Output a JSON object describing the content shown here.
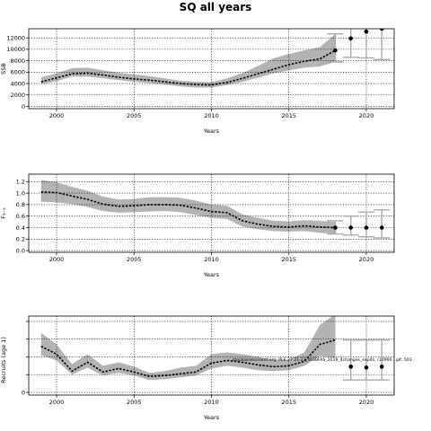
{
  "chart_data": {
    "type": "line",
    "title": "SQ all years",
    "watermark": "stockassessment.org, PLE.27.21-23_WGBFAS_2019_4changes_expits, r10990 , git: 503",
    "panels": [
      {
        "id": "ssb",
        "ylabel": "SSB",
        "xlabel": "Years",
        "xlim": [
          1998.2,
          2021.8
        ],
        "ylim": [
          -400,
          13600
        ],
        "xticks": [
          2000,
          2005,
          2010,
          2015,
          2020
        ],
        "yticks": [
          0,
          2000,
          4000,
          6000,
          8000,
          10000,
          12000
        ],
        "x": [
          1999,
          2000,
          2001,
          2002,
          2003,
          2004,
          2005,
          2006,
          2007,
          2008,
          2009,
          2010,
          2011,
          2012,
          2013,
          2014,
          2015,
          2016,
          2017,
          2018
        ],
        "estimate": [
          4300,
          5000,
          5700,
          5800,
          5500,
          5100,
          4800,
          4600,
          4300,
          4000,
          3800,
          3750,
          4200,
          4900,
          5700,
          6500,
          7300,
          7900,
          8300,
          9800
        ],
        "lower": [
          3900,
          4400,
          5200,
          5200,
          4900,
          4600,
          4300,
          4100,
          3800,
          3500,
          3300,
          3300,
          3700,
          4300,
          5000,
          5800,
          6300,
          6800,
          7000,
          7800
        ],
        "upper": [
          5100,
          5800,
          6700,
          6800,
          6300,
          5900,
          5600,
          5300,
          4900,
          4500,
          4300,
          4200,
          4900,
          5800,
          7100,
          8400,
          9200,
          9800,
          10400,
          12700
        ],
        "forecast_x": [
          2018,
          2019,
          2020,
          2021
        ],
        "forecast_median": [
          9800,
          11900,
          13100,
          13600
        ],
        "forecast_lower": [
          7800,
          8600,
          8500,
          8200
        ],
        "forecast_upper": [
          12700,
          13800,
          14200,
          14500
        ]
      },
      {
        "id": "fbar",
        "ylabel": "F₃₋₅",
        "xlabel": "Years",
        "xlim": [
          1998.2,
          2021.8
        ],
        "ylim": [
          -0.03,
          1.33
        ],
        "xticks": [
          2000,
          2005,
          2010,
          2015,
          2020
        ],
        "yticks": [
          0.0,
          0.2,
          0.4,
          0.6,
          0.8,
          1.0,
          1.2
        ],
        "x": [
          1999,
          2000,
          2001,
          2002,
          2003,
          2004,
          2005,
          2006,
          2007,
          2008,
          2009,
          2010,
          2011,
          2012,
          2013,
          2014,
          2015,
          2016,
          2017,
          2018
        ],
        "estimate": [
          1.02,
          1.01,
          0.95,
          0.89,
          0.81,
          0.77,
          0.78,
          0.8,
          0.8,
          0.79,
          0.74,
          0.68,
          0.66,
          0.52,
          0.46,
          0.42,
          0.41,
          0.43,
          0.41,
          0.4
        ],
        "lower": [
          0.85,
          0.84,
          0.81,
          0.76,
          0.69,
          0.66,
          0.67,
          0.68,
          0.69,
          0.67,
          0.62,
          0.57,
          0.55,
          0.42,
          0.37,
          0.34,
          0.33,
          0.34,
          0.31,
          0.29
        ],
        "upper": [
          1.23,
          1.19,
          1.11,
          1.04,
          0.94,
          0.89,
          0.9,
          0.93,
          0.93,
          0.92,
          0.87,
          0.8,
          0.78,
          0.63,
          0.57,
          0.52,
          0.51,
          0.53,
          0.52,
          0.5
        ],
        "forecast_x": [
          2018,
          2019,
          2020,
          2021
        ],
        "forecast_median": [
          0.4,
          0.4,
          0.4,
          0.4
        ],
        "forecast_lower": [
          0.29,
          0.27,
          0.24,
          0.22
        ],
        "forecast_upper": [
          0.52,
          0.6,
          0.67,
          0.71
        ]
      },
      {
        "id": "recruits",
        "ylabel": "Recruits (age 1)",
        "xlabel": "Years",
        "xlim": [
          1998.2,
          2021.8
        ],
        "ylim": [
          -3000,
          86000
        ],
        "xticks": [
          2000,
          2005,
          2010,
          2015,
          2020
        ],
        "yticks": [
          0,
          20000,
          40000,
          60000,
          80000
        ],
        "ytick_labels": [
          "0",
          "",
          "",
          "",
          ""
        ],
        "x": [
          1999,
          2000,
          2001,
          2002,
          2003,
          2004,
          2005,
          2006,
          2007,
          2008,
          2009,
          2010,
          2011,
          2012,
          2013,
          2014,
          2015,
          2016,
          2017,
          2018
        ],
        "estimate": [
          52000,
          43000,
          24000,
          34000,
          23000,
          27000,
          23000,
          18000,
          19000,
          21000,
          23000,
          33000,
          36000,
          34000,
          31000,
          29000,
          30000,
          35000,
          54000,
          59000
        ],
        "lower": [
          42000,
          36000,
          20000,
          28000,
          19000,
          22000,
          19000,
          14000,
          15000,
          17000,
          19000,
          27000,
          30000,
          28000,
          25000,
          24000,
          25000,
          30000,
          41000,
          39000
        ],
        "upper": [
          67000,
          54000,
          32000,
          43000,
          30000,
          34000,
          29000,
          22000,
          24000,
          28000,
          30000,
          43000,
          45000,
          43000,
          40000,
          37000,
          37000,
          45000,
          76000,
          88000
        ],
        "forecast_x": [
          2019,
          2020,
          2021
        ],
        "forecast_median": [
          29000,
          28000,
          29000
        ],
        "forecast_lower": [
          14000,
          14000,
          14000
        ],
        "forecast_upper": [
          59000,
          59000,
          59000
        ]
      }
    ]
  },
  "colors": {
    "band": "#b3b3b3",
    "estimate_line": "#000000",
    "forecast_bar": "#aaaaaa",
    "grid": "#000000"
  }
}
